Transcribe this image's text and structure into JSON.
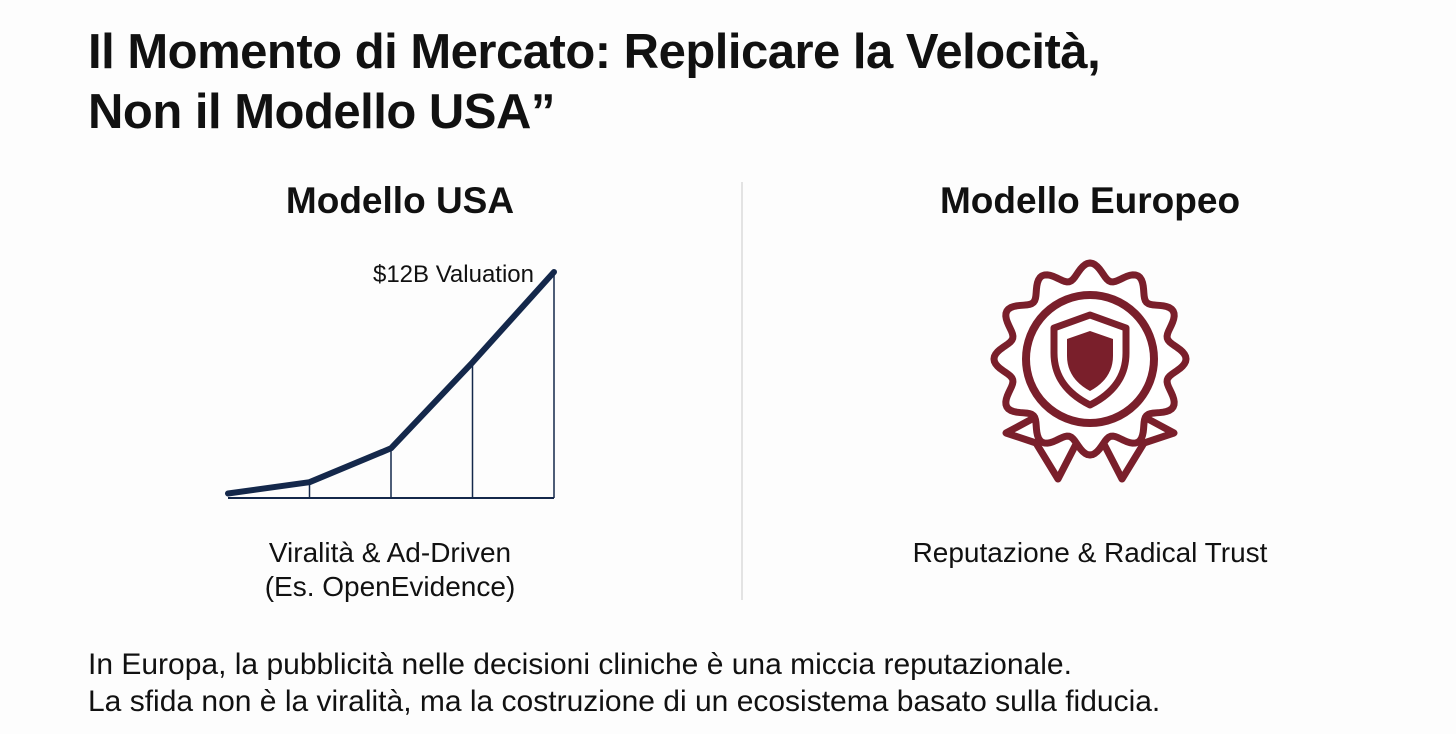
{
  "title": {
    "line1": "Il Momento di Mercato: Replicare la Velocità,",
    "line2": "Non il Modello USA”"
  },
  "left": {
    "heading": "Modello USA",
    "caption_line1": "Viralità & Ad-Driven",
    "caption_line2": "(Es. OpenEvidence)"
  },
  "right": {
    "heading": "Modello Europeo",
    "caption": "Reputazione & Radical Trust"
  },
  "footer": {
    "line1": "In Europa, la pubblicità nelle decisioni cliniche è una miccia reputazionale.",
    "line2": "La sfida non è la viralità, ma la costruzione di un ecosistema basato sulla fiducia."
  },
  "colors": {
    "line": "#14284b",
    "badge": "#7a1f2b"
  },
  "icons": {
    "right_icon": "award-badge-shield-icon"
  },
  "chart_data": {
    "type": "line",
    "points": [
      {
        "x": 0,
        "y": 2
      },
      {
        "x": 1,
        "y": 7
      },
      {
        "x": 2,
        "y": 22
      },
      {
        "x": 3,
        "y": 60
      },
      {
        "x": 4,
        "y": 100
      }
    ],
    "ylim": [
      0,
      100
    ],
    "annotation": "$12B Valuation"
  }
}
